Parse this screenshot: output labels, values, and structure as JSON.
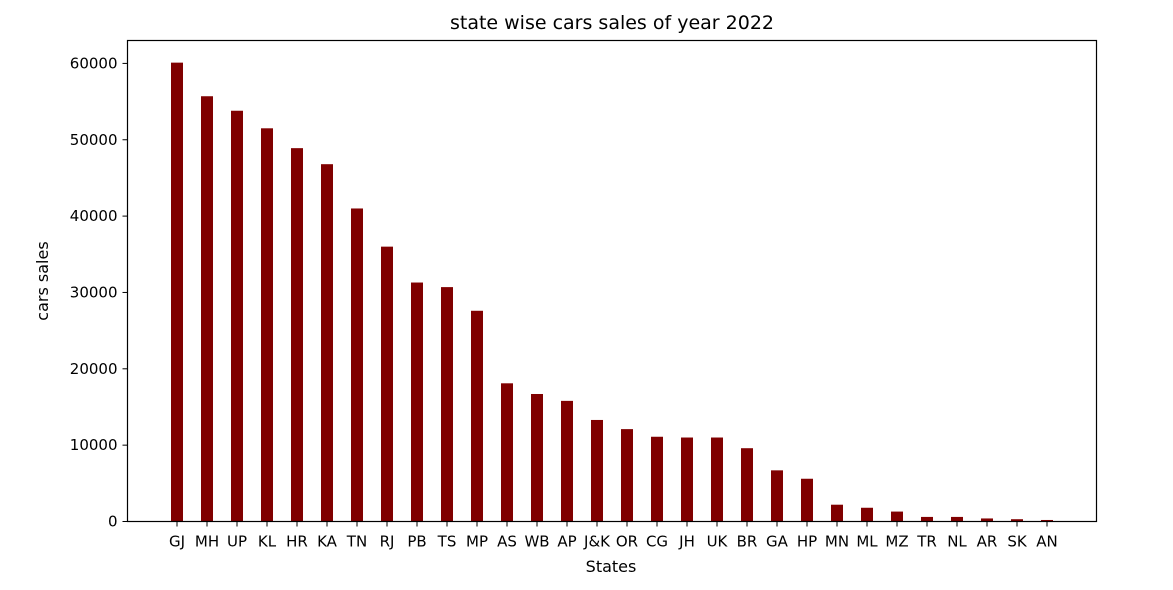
{
  "chart_data": {
    "type": "bar",
    "title": "state wise cars sales of year 2022",
    "xlabel": "States",
    "ylabel": "cars sales",
    "ylim": [
      0,
      63000
    ],
    "yticks": [
      0,
      10000,
      20000,
      30000,
      40000,
      50000,
      60000
    ],
    "grid": false,
    "bar_color": "#800000",
    "categories": [
      "GJ",
      "MH",
      "UP",
      "KL",
      "HR",
      "KA",
      "TN",
      "RJ",
      "PB",
      "TS",
      "MP",
      "AS",
      "WB",
      "AP",
      "J&K",
      "OR",
      "CG",
      "JH",
      "UK",
      "BR",
      "GA",
      "HP",
      "MN",
      "ML",
      "MZ",
      "TR",
      "NL",
      "AR",
      "SK",
      "AN"
    ],
    "values": [
      60100,
      55700,
      53800,
      51500,
      48900,
      46800,
      41000,
      36000,
      31300,
      30700,
      27600,
      18100,
      16700,
      15800,
      13300,
      12100,
      11100,
      11000,
      11000,
      9600,
      6700,
      5600,
      2200,
      1800,
      1300,
      600,
      600,
      400,
      300,
      200
    ]
  }
}
